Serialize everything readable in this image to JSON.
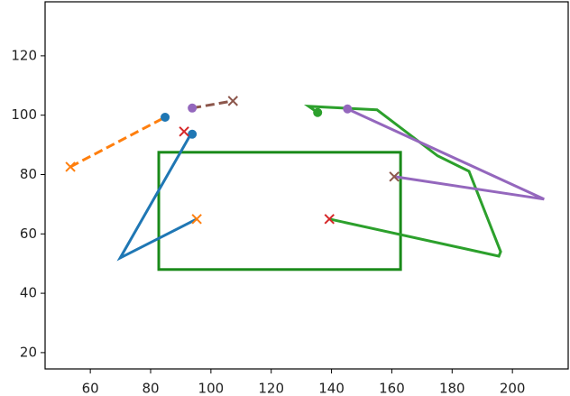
{
  "chart_data": {
    "type": "line",
    "xlim": [
      45.0,
      218.5
    ],
    "ylim": [
      14.5,
      138.2
    ],
    "xticks": [
      60,
      80,
      100,
      120,
      140,
      160,
      180,
      200
    ],
    "yticks": [
      20,
      40,
      60,
      80,
      100,
      120
    ],
    "lines": [
      {
        "color": "#1f77b4",
        "dash": false,
        "x": [
          95.3,
          69.9,
          93.5
        ],
        "y": [
          65.0,
          51.9,
          93.9
        ]
      },
      {
        "color": "#ff7f0e",
        "dash": true,
        "x": [
          53.4,
          84.8
        ],
        "y": [
          82.6,
          99.3
        ]
      },
      {
        "color": "#8c564b",
        "dash": true,
        "x": [
          93.8,
          107.3
        ],
        "y": [
          102.4,
          104.8
        ]
      },
      {
        "color": "#2ca02c",
        "dash": false,
        "x": [
          139.3,
          195.5,
          196.1,
          185.6,
          175.2,
          155.1,
          132.4,
          135.4
        ],
        "y": [
          65.0,
          52.5,
          54.0,
          81.1,
          86.3,
          101.8,
          103.0,
          100.9
        ]
      },
      {
        "color": "#9467bd",
        "dash": false,
        "x": [
          160.8,
          210.5,
          145.3
        ],
        "y": [
          79.3,
          71.7,
          102.1
        ]
      }
    ],
    "markers": [
      {
        "color": "#ff7f0e",
        "shape": "x",
        "x": 95.3,
        "y": 65.0
      },
      {
        "color": "#1f77b4",
        "shape": "o",
        "x": 93.8,
        "y": 93.6
      },
      {
        "color": "#ff7f0e",
        "shape": "x",
        "x": 53.4,
        "y": 82.6
      },
      {
        "color": "#1f77b4",
        "shape": "o",
        "x": 84.8,
        "y": 99.3
      },
      {
        "color": "#9467bd",
        "shape": "o",
        "x": 93.8,
        "y": 102.4
      },
      {
        "color": "#8c564b",
        "shape": "x",
        "x": 107.3,
        "y": 104.8
      },
      {
        "color": "#d62728",
        "shape": "x",
        "x": 139.3,
        "y": 65.0
      },
      {
        "color": "#2ca02c",
        "shape": "o",
        "x": 135.4,
        "y": 100.9
      },
      {
        "color": "#8c564b",
        "shape": "x",
        "x": 160.8,
        "y": 79.3
      },
      {
        "color": "#9467bd",
        "shape": "o",
        "x": 145.3,
        "y": 102.1
      },
      {
        "color": "#d62728",
        "shape": "x",
        "x": 91.1,
        "y": 94.5
      }
    ],
    "rectangle": {
      "color": "#1a8a1a",
      "x0": 82.7,
      "x1": 162.9,
      "y0": 48.0,
      "y1": 87.5
    }
  }
}
